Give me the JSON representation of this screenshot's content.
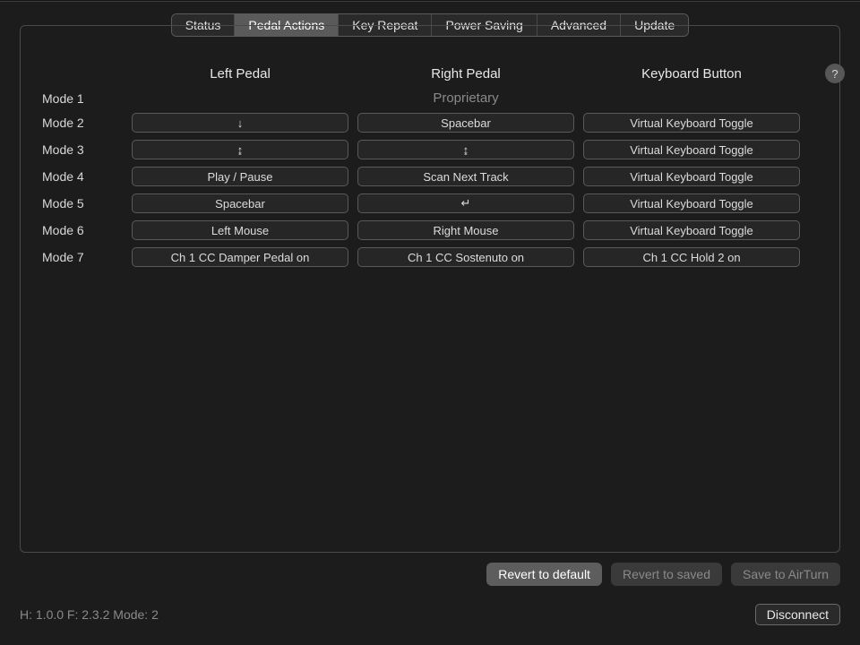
{
  "tabs": {
    "items": [
      "Status",
      "Pedal Actions",
      "Key Repeat",
      "Power Saving",
      "Advanced",
      "Update"
    ],
    "active_index": 1
  },
  "columns": {
    "left": "Left Pedal",
    "right": "Right Pedal",
    "kbd": "Keyboard Button"
  },
  "help_glyph": "?",
  "rows": [
    {
      "label": "Mode 1",
      "proprietary": "Proprietary"
    },
    {
      "label": "Mode 2",
      "left": "↓",
      "right": "Spacebar",
      "kbd": "Virtual Keyboard Toggle"
    },
    {
      "label": "Mode 3",
      "left": "↨",
      "right": "↨",
      "kbd": "Virtual Keyboard Toggle"
    },
    {
      "label": "Mode 4",
      "left": "Play / Pause",
      "right": "Scan Next Track",
      "kbd": "Virtual Keyboard Toggle"
    },
    {
      "label": "Mode 5",
      "left": "Spacebar",
      "right": "↵",
      "kbd": "Virtual Keyboard Toggle"
    },
    {
      "label": "Mode 6",
      "left": "Left Mouse",
      "right": "Right Mouse",
      "kbd": "Virtual Keyboard Toggle"
    },
    {
      "label": "Mode 7",
      "left": "Ch 1 CC Damper Pedal on",
      "right": "Ch 1 CC Sostenuto on",
      "kbd": "Ch 1 CC Hold 2 on"
    }
  ],
  "buttons": {
    "revert_default": "Revert to default",
    "revert_saved": "Revert to saved",
    "save": "Save to AirTurn"
  },
  "status_text": "H: 1.0.0  F: 2.3.2  Mode: 2",
  "disconnect": "Disconnect",
  "colors": {
    "bg": "#1c1c1c",
    "panel_border": "#4a4a4a",
    "seg_bg": "#2a2a2a",
    "seg_active": "#5a5a5a",
    "cell_bg": "#262626",
    "cell_border": "#5a5a5a",
    "text": "#d8d8d8",
    "muted": "#8a8a8a",
    "btn_primary": "#5d5d5d",
    "btn_muted": "#3a3a3a",
    "help_bg": "#575757"
  }
}
